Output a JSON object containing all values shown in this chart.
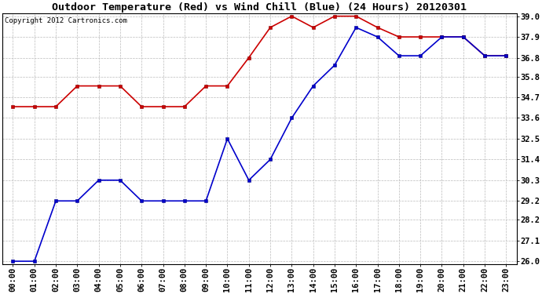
{
  "title": "Outdoor Temperature (Red) vs Wind Chill (Blue) (24 Hours) 20120301",
  "copyright_text": "Copyright 2012 Cartronics.com",
  "x_labels": [
    "00:00",
    "01:00",
    "02:00",
    "03:00",
    "04:00",
    "05:00",
    "06:00",
    "07:00",
    "08:00",
    "09:00",
    "10:00",
    "11:00",
    "12:00",
    "13:00",
    "14:00",
    "15:00",
    "16:00",
    "17:00",
    "18:00",
    "19:00",
    "20:00",
    "21:00",
    "22:00",
    "23:00"
  ],
  "red_temp": [
    34.2,
    34.2,
    34.2,
    35.3,
    35.3,
    35.3,
    34.2,
    34.2,
    34.2,
    35.3,
    35.3,
    36.8,
    38.4,
    39.0,
    38.4,
    39.0,
    39.0,
    38.4,
    37.9,
    37.9,
    37.9,
    37.9,
    36.9,
    36.9
  ],
  "blue_wc": [
    26.0,
    26.0,
    29.2,
    29.2,
    30.3,
    30.3,
    29.2,
    29.2,
    29.2,
    29.2,
    32.5,
    30.3,
    31.4,
    33.6,
    35.3,
    36.4,
    38.4,
    37.9,
    36.9,
    36.9,
    37.9,
    37.9,
    36.9,
    36.9
  ],
  "ylim_min": 26.0,
  "ylim_max": 39.0,
  "y_ticks": [
    26.0,
    27.1,
    28.2,
    29.2,
    30.3,
    31.4,
    32.5,
    33.6,
    34.7,
    35.8,
    36.8,
    37.9,
    39.0
  ],
  "red_color": "#cc0000",
  "blue_color": "#0000cc",
  "bg_color": "#ffffff",
  "grid_color": "#bbbbbb",
  "title_fontsize": 9.5,
  "copyright_fontsize": 6.5,
  "tick_fontsize": 7.5
}
